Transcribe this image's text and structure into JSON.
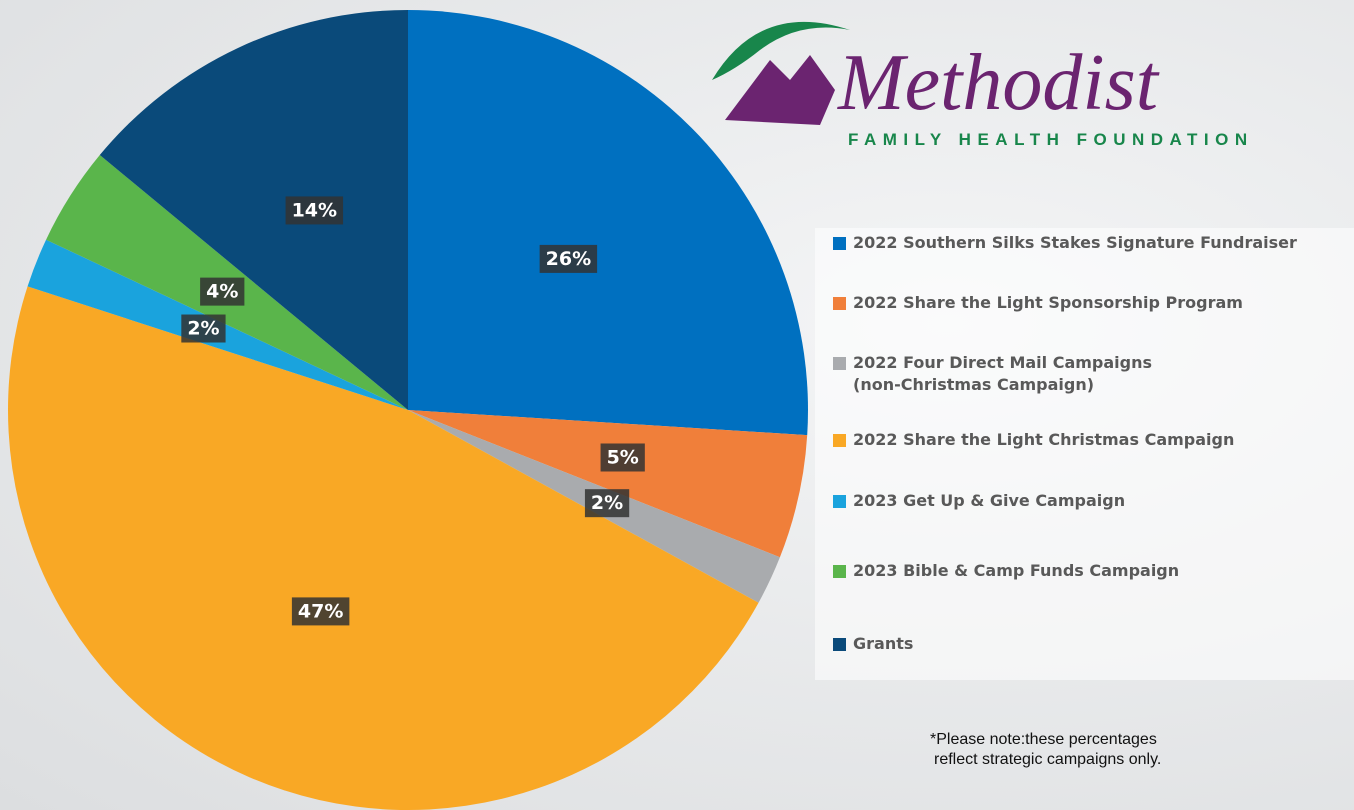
{
  "brand": {
    "name": "Methodist",
    "tagline": "FAMILY HEALTH FOUNDATION"
  },
  "chart_data": {
    "type": "pie",
    "categories": [
      "2022 Southern Silks Stakes Signature Fundraiser",
      "2022 Share the Light Sponsorship Program",
      "2022 Four Direct Mail Campaigns\n(non-Christmas Campaign)",
      "2022 Share the Light Christmas Campaign",
      "2023 Get Up & Give Campaign",
      "2023 Bible & Camp Funds Campaign",
      "Grants"
    ],
    "values": [
      26,
      5,
      2,
      47,
      2,
      4,
      14
    ],
    "value_labels": [
      "26%",
      "5%",
      "2%",
      "47%",
      "2%",
      "4%",
      "14%"
    ],
    "colors": [
      "#0070c0",
      "#f07f3a",
      "#a9abae",
      "#f9a825",
      "#1aa3dd",
      "#5ab54b",
      "#0a4a7a"
    ],
    "legend": "right"
  },
  "note": [
    "*Please note:these percentages",
    "reflect strategic campaigns only."
  ]
}
